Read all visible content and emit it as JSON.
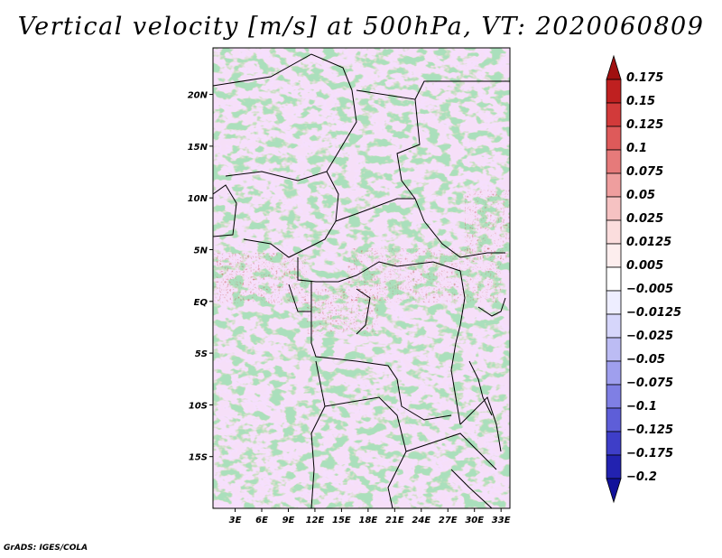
{
  "map": {
    "title": "Vertical velocity [m/s] at 500hPa, VT: 2020060809",
    "credit": "GrADS: IGES/COLA",
    "lat_labels": [
      "20N",
      "15N",
      "10N",
      "5N",
      "EQ",
      "5S",
      "10S",
      "15S"
    ],
    "lon_labels": [
      "3E",
      "6E",
      "9E",
      "12E",
      "15E",
      "18E",
      "21E",
      "24E",
      "27E",
      "30E",
      "33E"
    ],
    "lat_values": [
      20,
      15,
      10,
      5,
      0,
      -5,
      -10,
      -15
    ],
    "lon_values": [
      3,
      6,
      9,
      12,
      15,
      18,
      21,
      24,
      27,
      30,
      33
    ],
    "lat_range": [
      -20,
      24.5
    ],
    "lon_range": [
      0.5,
      34
    ]
  },
  "colorbar": {
    "labels": [
      "0.175",
      "0.15",
      "0.125",
      "0.1",
      "0.075",
      "0.05",
      "0.025",
      "0.0125",
      "0.005",
      "−0.005",
      "−0.0125",
      "−0.025",
      "−0.05",
      "−0.075",
      "−0.1",
      "−0.125",
      "−0.175",
      "−0.2"
    ],
    "colors": [
      "#a01010",
      "#bf2020",
      "#d23a3a",
      "#de5a5a",
      "#e67a7a",
      "#ef9e9e",
      "#f6c2c2",
      "#fbdddd",
      "#fdeeee",
      "#ffffff",
      "#eeeeff",
      "#d6d6fb",
      "#bcbcf4",
      "#9f9fee",
      "#7f7fe4",
      "#5e5ed8",
      "#3e3ec8",
      "#2222b0",
      "#11119a"
    ]
  }
}
